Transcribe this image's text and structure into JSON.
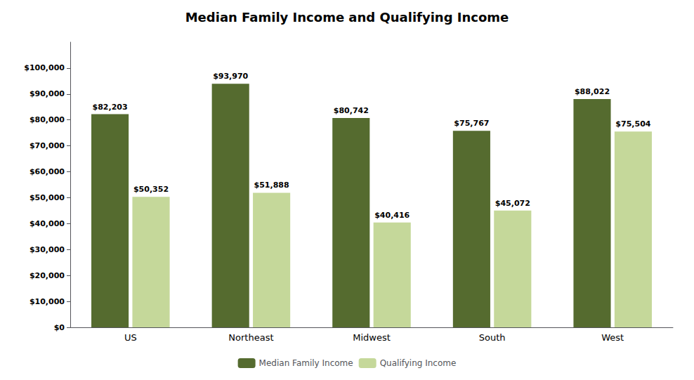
{
  "chart_data": {
    "type": "bar",
    "title": "Median Family Income and Qualifying Income",
    "categories": [
      "US",
      "Northeast",
      "Midwest",
      "South",
      "West"
    ],
    "series": [
      {
        "name": "Median Family Income",
        "color": "#556b2f",
        "values": [
          82203,
          93970,
          80742,
          75767,
          88022
        ],
        "value_labels": [
          "$82,203",
          "$93,970",
          "$80,742",
          "$75,767",
          "$88,022"
        ]
      },
      {
        "name": "Qualifying Income",
        "color": "#c5d89a",
        "values": [
          50352,
          51888,
          40416,
          45072,
          75504
        ],
        "value_labels": [
          "$50,352",
          "$51,888",
          "$40,416",
          "$45,072",
          "$75,504"
        ]
      }
    ],
    "ylim": [
      0,
      110000
    ],
    "yticks": [
      {
        "value": 0,
        "label": "$0"
      },
      {
        "value": 10000,
        "label": "$10,000"
      },
      {
        "value": 20000,
        "label": "$20,000"
      },
      {
        "value": 30000,
        "label": "$30,000"
      },
      {
        "value": 40000,
        "label": "$40,000"
      },
      {
        "value": 50000,
        "label": "$50,000"
      },
      {
        "value": 60000,
        "label": "$60,000"
      },
      {
        "value": 70000,
        "label": "$70,000"
      },
      {
        "value": 80000,
        "label": "$80,000"
      },
      {
        "value": 90000,
        "label": "$90,000"
      },
      {
        "value": 100000,
        "label": "$100,000"
      }
    ],
    "grid": false,
    "legend": "bottom",
    "data_labels": true
  }
}
